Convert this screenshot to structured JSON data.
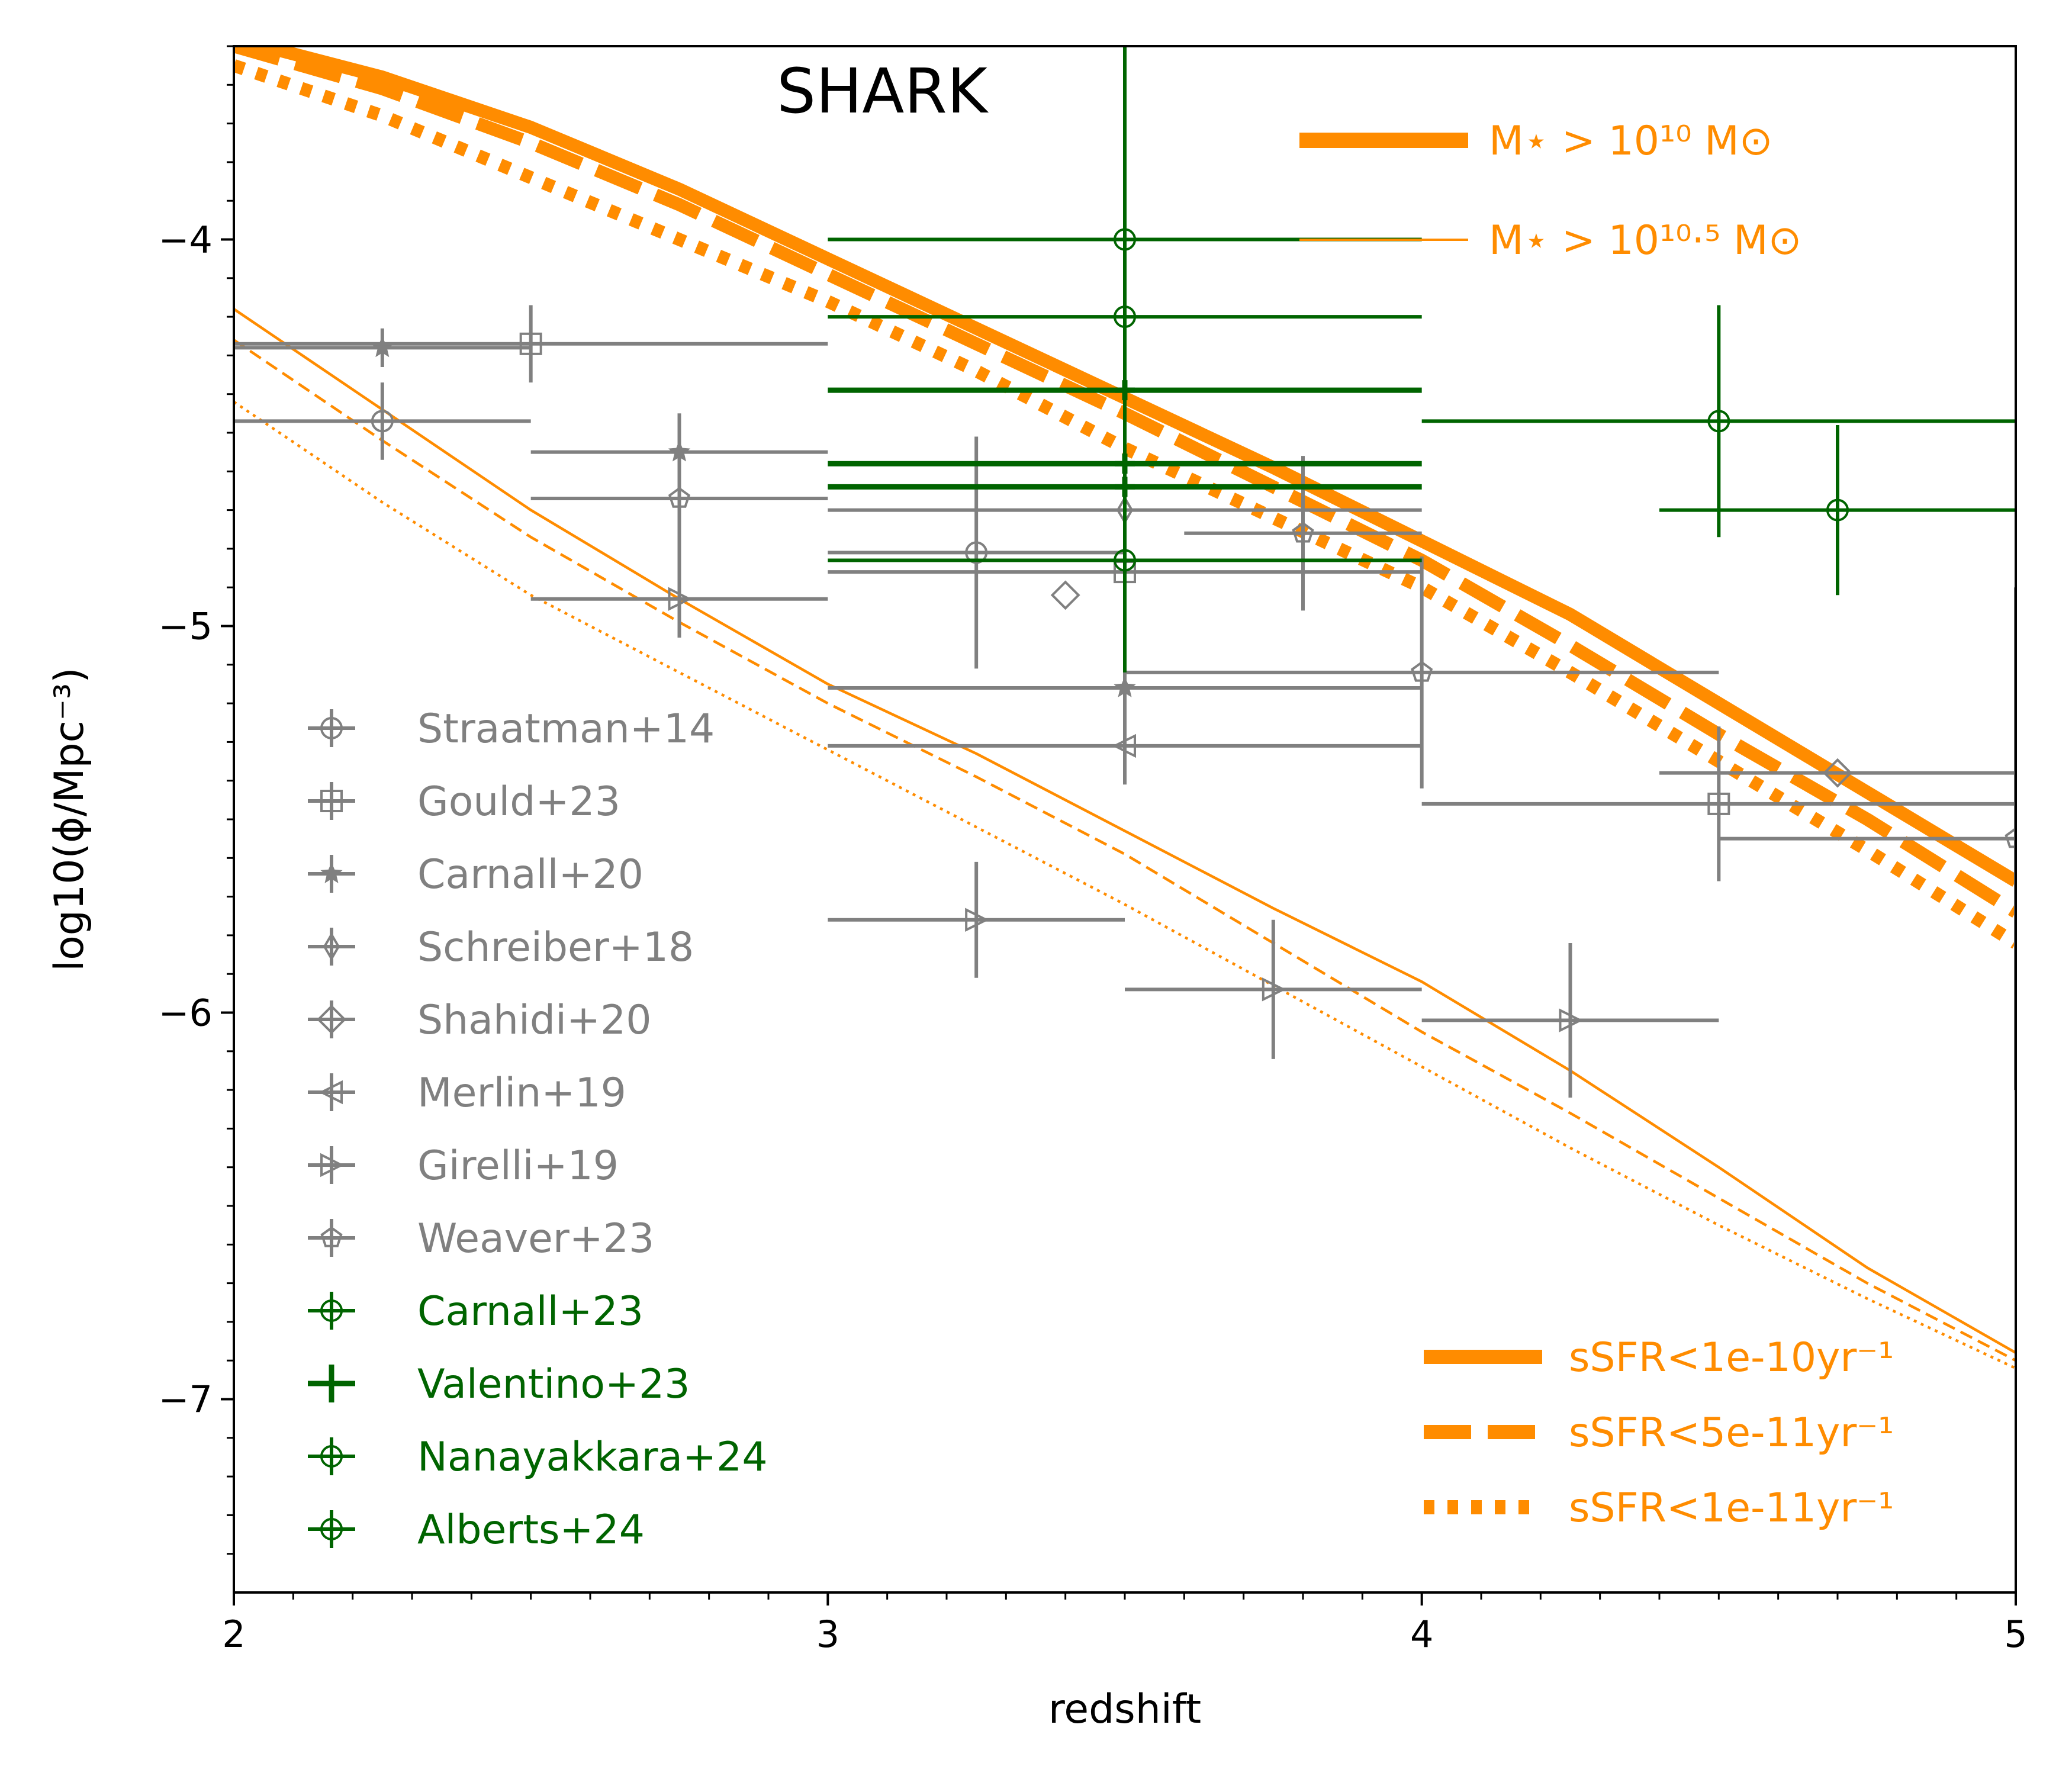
{
  "chart_data": {
    "type": "line",
    "title": "SHARK",
    "xlabel": "redshift",
    "ylabel": "log10(ϕ/Mpc⁻³)",
    "xlim": [
      2,
      5
    ],
    "ylim": [
      -7.5,
      -3.5
    ],
    "x_ticks": [
      "2",
      "3",
      "4",
      "5"
    ],
    "y_ticks": [
      "−4",
      "−5",
      "−6",
      "−7"
    ],
    "mass_legend": [
      {
        "label": "M⋆ > 10¹⁰ M⊙",
        "weight": "thick"
      },
      {
        "label": "M⋆ > 10¹⁰·⁵ M⊙",
        "weight": "thin"
      }
    ],
    "ssfr_legend": [
      {
        "label": "sSFR<1e-10yr⁻¹",
        "style": "solid"
      },
      {
        "label": "sSFR<5e-11yr⁻¹",
        "style": "dashed"
      },
      {
        "label": "sSFR<1e-11yr⁻¹",
        "style": "dotted"
      }
    ],
    "series": [
      {
        "mass": "10",
        "ssfr": "1e-10",
        "style": "solid",
        "weight": "thick",
        "x": [
          2.0,
          2.25,
          2.5,
          2.75,
          3.0,
          3.25,
          3.5,
          3.75,
          4.0,
          4.25,
          4.5,
          4.75,
          5.0
        ],
        "y": [
          -3.48,
          -3.58,
          -3.71,
          -3.87,
          -4.05,
          -4.23,
          -4.41,
          -4.59,
          -4.78,
          -4.97,
          -5.2,
          -5.43,
          -5.66
        ]
      },
      {
        "mass": "10",
        "ssfr": "5e-11",
        "style": "dashed",
        "weight": "thick",
        "x": [
          2.0,
          2.25,
          2.5,
          2.75,
          3.0,
          3.25,
          3.5,
          3.75,
          4.0,
          4.25,
          4.5,
          4.75,
          5.0
        ],
        "y": [
          -3.5,
          -3.61,
          -3.75,
          -3.91,
          -4.09,
          -4.27,
          -4.45,
          -4.64,
          -4.83,
          -5.05,
          -5.28,
          -5.5,
          -5.74
        ]
      },
      {
        "mass": "10",
        "ssfr": "1e-11",
        "style": "dotted",
        "weight": "thick",
        "x": [
          2.0,
          2.25,
          2.5,
          2.75,
          3.0,
          3.25,
          3.5,
          3.75,
          4.0,
          4.25,
          4.5,
          4.75,
          5.0
        ],
        "y": [
          -3.55,
          -3.68,
          -3.84,
          -4.0,
          -4.16,
          -4.34,
          -4.54,
          -4.72,
          -4.9,
          -5.12,
          -5.35,
          -5.58,
          -5.82
        ]
      },
      {
        "mass": "10.5",
        "ssfr": "1e-10",
        "style": "solid",
        "weight": "thin",
        "x": [
          2.0,
          2.25,
          2.5,
          2.75,
          3.0,
          3.25,
          3.5,
          3.75,
          4.0,
          4.25,
          4.5,
          4.75,
          5.0
        ],
        "y": [
          -4.18,
          -4.44,
          -4.7,
          -4.93,
          -5.15,
          -5.33,
          -5.53,
          -5.73,
          -5.92,
          -6.15,
          -6.4,
          -6.66,
          -6.88
        ]
      },
      {
        "mass": "10.5",
        "ssfr": "5e-11",
        "style": "dashed",
        "weight": "thin",
        "x": [
          2.0,
          2.25,
          2.5,
          2.75,
          3.0,
          3.25,
          3.5,
          3.75,
          4.0,
          4.25,
          4.5,
          4.75,
          5.0
        ],
        "y": [
          -4.26,
          -4.52,
          -4.77,
          -4.99,
          -5.2,
          -5.39,
          -5.59,
          -5.82,
          -6.05,
          -6.26,
          -6.48,
          -6.7,
          -6.9
        ]
      },
      {
        "mass": "10.5",
        "ssfr": "1e-11",
        "style": "dotted",
        "weight": "thin",
        "x": [
          2.0,
          2.25,
          2.5,
          2.75,
          3.0,
          3.25,
          3.5,
          3.75,
          4.0,
          4.25,
          4.5,
          4.75,
          5.0
        ],
        "y": [
          -4.42,
          -4.68,
          -4.92,
          -5.12,
          -5.32,
          -5.52,
          -5.72,
          -5.93,
          -6.14,
          -6.35,
          -6.55,
          -6.74,
          -6.92
        ]
      }
    ],
    "observations": [
      {
        "name": "Straatman+14",
        "marker": "circle",
        "color": "#808080",
        "points": [
          {
            "x": 2.25,
            "y": -4.47,
            "xerr": 0.25,
            "yerr": 0.1
          },
          {
            "x": 3.25,
            "y": -4.81,
            "xerr": 0.25,
            "yerr": 0.3
          }
        ]
      },
      {
        "name": "Gould+23",
        "marker": "square",
        "color": "#808080",
        "points": [
          {
            "x": 2.5,
            "y": -4.27,
            "xerr": 0.5,
            "yerr": 0.1
          },
          {
            "x": 3.5,
            "y": -4.86,
            "xerr": 0.5,
            "yerr": 0.1
          },
          {
            "x": 4.5,
            "y": -5.46,
            "xerr": 0.5,
            "yerr": 0.2
          }
        ]
      },
      {
        "name": "Carnall+20",
        "marker": "star",
        "color": "#808080",
        "points": [
          {
            "x": 2.25,
            "y": -4.28,
            "xerr": 0.25,
            "yerr": 0.05
          },
          {
            "x": 2.75,
            "y": -4.55,
            "xerr": 0.25,
            "yerr": 0.1
          },
          {
            "x": 3.5,
            "y": -5.16,
            "xerr": 0.5,
            "yerr": 0.1
          }
        ]
      },
      {
        "name": "Schreiber+18",
        "marker": "thin-diamond",
        "color": "#808080",
        "points": [
          {
            "x": 3.5,
            "y": -4.7,
            "xerr": 0.5,
            "yerr": 0.1
          }
        ]
      },
      {
        "name": "Shahidi+20",
        "marker": "diamond",
        "color": "#808080",
        "points": [
          {
            "x": 3.4,
            "y": -4.92,
            "xerr": 0.0,
            "yerr": 0.0
          },
          {
            "x": 4.7,
            "y": -5.38,
            "xerr": 0.3,
            "yerr": 0.0
          }
        ]
      },
      {
        "name": "Merlin+19",
        "marker": "triangle-left",
        "color": "#808080",
        "points": [
          {
            "x": 3.5,
            "y": -5.31,
            "xerr": 0.5,
            "yerr": 0.1
          }
        ]
      },
      {
        "name": "Girelli+19",
        "marker": "triangle-right",
        "color": "#808080",
        "points": [
          {
            "x": 2.75,
            "y": -4.93,
            "xerr": 0.25,
            "yerr": 0.1
          },
          {
            "x": 3.25,
            "y": -5.76,
            "xerr": 0.25,
            "yerr": 0.15
          },
          {
            "x": 3.75,
            "y": -5.94,
            "xerr": 0.25,
            "yerr": 0.18
          },
          {
            "x": 4.25,
            "y": -6.02,
            "xerr": 0.25,
            "yerr": 0.2
          }
        ]
      },
      {
        "name": "Weaver+23",
        "marker": "pentagon",
        "color": "#808080",
        "points": [
          {
            "x": 2.75,
            "y": -4.67,
            "xerr": 0.25,
            "yerr": 0.22
          },
          {
            "x": 3.8,
            "y": -4.76,
            "xerr": 0.2,
            "yerr": 0.2
          },
          {
            "x": 4.0,
            "y": -5.12,
            "xerr": 0.5,
            "yerr": 0.3
          },
          {
            "x": 5.0,
            "y": -5.55,
            "xerr": 0.5,
            "yerr": 0.65
          }
        ]
      },
      {
        "name": "Carnall+23",
        "marker": "circle",
        "color": "#006400",
        "points": [
          {
            "x": 3.5,
            "y": -4.0,
            "xerr": 0.5,
            "yerr": 0.0
          },
          {
            "x": 3.5,
            "y": -4.2,
            "xerr": 0.5,
            "yerr": 0.0
          },
          {
            "x": 4.5,
            "y": -4.47,
            "xerr": 0.5,
            "yerr": 0.3
          }
        ]
      },
      {
        "name": "Valentino+23",
        "marker": "plus",
        "color": "#006400",
        "points": [
          {
            "x": 3.5,
            "y": -4.39,
            "xerr": 0.5,
            "yerr": 0.0
          },
          {
            "x": 3.5,
            "y": -4.58,
            "xerr": 0.5,
            "yerr": 0.0
          },
          {
            "x": 3.5,
            "y": -4.64,
            "xerr": 0.5,
            "yerr": 0.0
          }
        ]
      },
      {
        "name": "Nanayakkara+24",
        "marker": "circle-cross",
        "color": "#006400",
        "points": [
          {
            "x": 3.5,
            "y": -4.83,
            "xerr": 0.5,
            "yerr": 0.0
          }
        ]
      },
      {
        "name": "Alberts+24",
        "marker": "circle",
        "color": "#006400",
        "points": [
          {
            "x": 4.7,
            "y": -4.7,
            "xerr": 0.3,
            "yerr": 0.22
          }
        ]
      }
    ],
    "big_error_bar": {
      "x": 3.5,
      "y_low": -5.12,
      "y_high": -3.44
    },
    "colors": {
      "model": "#ff8c00",
      "grey_obs": "#808080",
      "green_obs": "#006400"
    },
    "legend_placement": {
      "mass": "top-right",
      "ssfr": "bottom-right",
      "observations": "left"
    },
    "grid": false
  }
}
